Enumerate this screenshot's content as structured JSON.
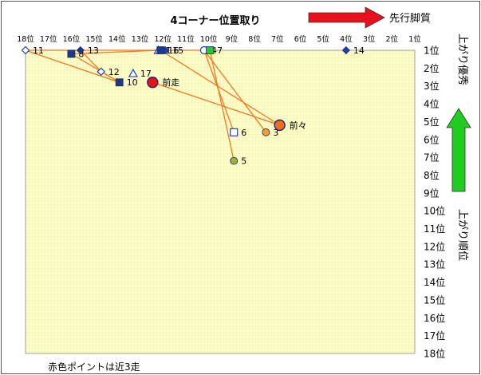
{
  "chart_data": {
    "type": "scatter",
    "title": "4コーナー位置取り",
    "x_axis_label": "先行脚質",
    "y_axis_label_top": "上がり優秀",
    "y_axis_label_side": "上がり順位",
    "footnote": "赤色ポイントは近3走",
    "x_ticks": [
      "18位",
      "17位",
      "16位",
      "15位",
      "14位",
      "13位",
      "12位",
      "11位",
      "10位",
      "9位",
      "8位",
      "7位",
      "6位",
      "5位",
      "4位",
      "3位",
      "2位",
      "1位"
    ],
    "y_ticks": [
      "1位",
      "2位",
      "3位",
      "4位",
      "5位",
      "6位",
      "7位",
      "8位",
      "9位",
      "10位",
      "11位",
      "12位",
      "13位",
      "14位",
      "15位",
      "16位",
      "17位",
      "18位"
    ],
    "xlim": [
      18,
      1
    ],
    "ylim": [
      1,
      18
    ],
    "points": [
      {
        "label": "1",
        "x": 12.2,
        "y": 1.0,
        "marker": "triangle-open",
        "color": "#1f3fbf"
      },
      {
        "label": "3",
        "x": 7.5,
        "y": 5.6,
        "marker": "circle",
        "color": "#f0a030"
      },
      {
        "label": "4",
        "x": 10.2,
        "y": 1.0,
        "marker": "circle-open",
        "color": "#1f3fbf"
      },
      {
        "label": "5",
        "x": 8.9,
        "y": 7.2,
        "marker": "circle",
        "color": "#99b23a"
      },
      {
        "label": "6",
        "x": 8.9,
        "y": 5.6,
        "marker": "square-open",
        "color": "#1f3fbf"
      },
      {
        "label": "7",
        "x": 9.95,
        "y": 1.0,
        "marker": "square",
        "color": "#22cc22"
      },
      {
        "label": "8",
        "x": 16.0,
        "y": 1.2,
        "marker": "square",
        "color": "#1a3b8a"
      },
      {
        "label": "10",
        "x": 13.9,
        "y": 2.8,
        "marker": "square",
        "color": "#1a3b8a"
      },
      {
        "label": "11",
        "x": 18.0,
        "y": 1.0,
        "marker": "diamond-open",
        "color": "#1f3fbf"
      },
      {
        "label": "12",
        "x": 14.7,
        "y": 2.2,
        "marker": "diamond-open",
        "color": "#1f3fbf"
      },
      {
        "label": "13",
        "x": 15.6,
        "y": 1.0,
        "marker": "diamond",
        "color": "#1a3b8a"
      },
      {
        "label": "14",
        "x": 4.0,
        "y": 1.0,
        "marker": "diamond",
        "color": "#1f3fbf"
      },
      {
        "label": "15",
        "x": 11.9,
        "y": 1.0,
        "marker": "diamond",
        "color": "#1f3fbf"
      },
      {
        "label": "16",
        "x": 12.1,
        "y": 1.0,
        "marker": "square",
        "color": "#1a3b8a"
      },
      {
        "label": "17",
        "x": 13.3,
        "y": 2.3,
        "marker": "triangle-open",
        "color": "#1f3fbf"
      },
      {
        "label": "前走",
        "x": 12.45,
        "y": 2.8,
        "marker": "big-circle",
        "color": "#e8101a"
      },
      {
        "label": "前々",
        "x": 6.9,
        "y": 5.2,
        "marker": "big-circle",
        "color": "#f06a20"
      }
    ],
    "lines": [
      {
        "from": "11",
        "to": "10"
      },
      {
        "from": "8",
        "to": "10"
      },
      {
        "from": "13",
        "to": "12"
      },
      {
        "from": "12",
        "to": "10"
      },
      {
        "from": "8",
        "to": "16"
      },
      {
        "from": "7",
        "to": "5"
      },
      {
        "from": "4",
        "to": "6"
      },
      {
        "from": "4",
        "to": "3"
      },
      {
        "from": "16",
        "to": "前々"
      },
      {
        "from": "前走",
        "to": "前々"
      },
      {
        "from": "11",
        "to": "7"
      }
    ],
    "line_color": "#f07820",
    "plot_bg": "#fdfdc8",
    "grid": true,
    "arrows": {
      "right": "#e8101a",
      "up": "#1fcc1f"
    }
  }
}
